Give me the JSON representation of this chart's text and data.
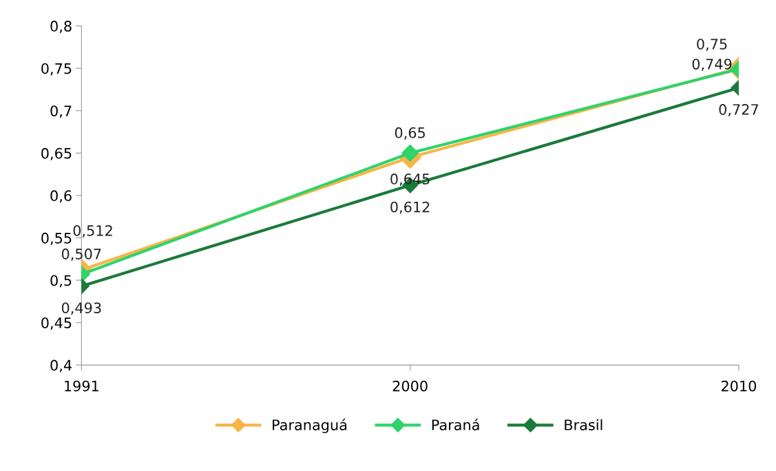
{
  "chart_data": {
    "type": "line",
    "categories": [
      "1991",
      "2000",
      "2010"
    ],
    "series": [
      {
        "name": "Paranaguá",
        "color": "#f7b548",
        "values": [
          0.512,
          0.645,
          0.75
        ],
        "value_labels": [
          "0,512",
          "0,645",
          "0,75"
        ]
      },
      {
        "name": "Paraná",
        "color": "#2fd36a",
        "values": [
          0.507,
          0.65,
          0.749
        ],
        "value_labels": [
          "0,507",
          "0,65",
          "0,749"
        ]
      },
      {
        "name": "Brasil",
        "color": "#1a7a3a",
        "values": [
          0.493,
          0.612,
          0.727
        ],
        "value_labels": [
          "0,493",
          "0,612",
          "0,727"
        ]
      }
    ],
    "ylim": [
      0.4,
      0.8
    ],
    "yticks": [
      {
        "value": 0.4,
        "label": "0,4"
      },
      {
        "value": 0.45,
        "label": "0,45"
      },
      {
        "value": 0.5,
        "label": "0,5"
      },
      {
        "value": 0.55,
        "label": "0,55"
      },
      {
        "value": 0.6,
        "label": "0,6"
      },
      {
        "value": 0.65,
        "label": "0,65"
      },
      {
        "value": 0.7,
        "label": "0,7"
      },
      {
        "value": 0.75,
        "label": "0,75"
      },
      {
        "value": 0.8,
        "label": "0,8"
      }
    ],
    "grid": false,
    "legend": "bottom",
    "marker": "diamond",
    "line_style": "solid"
  }
}
